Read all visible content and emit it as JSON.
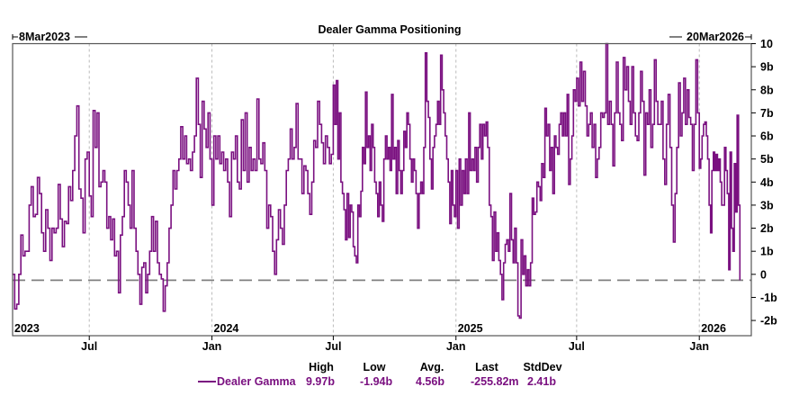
{
  "chart_data": {
    "type": "line",
    "title": "Dealer Gamma Positioning",
    "start_label": "8Mar2023",
    "end_label": "20Mar2026",
    "x_range": [
      "2023-03-08",
      "2026-03-20"
    ],
    "ylim": [
      -2.66,
      10
    ],
    "y_ticks": [
      {
        "v": 10,
        "label": "10"
      },
      {
        "v": 9,
        "label": "9b"
      },
      {
        "v": 8,
        "label": "8b"
      },
      {
        "v": 7,
        "label": "7b"
      },
      {
        "v": 6,
        "label": "6b"
      },
      {
        "v": 5,
        "label": "5b"
      },
      {
        "v": 4,
        "label": "4b"
      },
      {
        "v": 3,
        "label": "3b"
      },
      {
        "v": 2,
        "label": "2b"
      },
      {
        "v": 1,
        "label": "1b"
      },
      {
        "v": 0,
        "label": "0"
      },
      {
        "v": -1,
        "label": "-1b"
      },
      {
        "v": -2,
        "label": "-2b"
      }
    ],
    "x_ticks": [
      {
        "date": "2023-07-01",
        "label": "Jul"
      },
      {
        "date": "2024-01-01",
        "label": "Jan"
      },
      {
        "date": "2024-07-01",
        "label": "Jul"
      },
      {
        "date": "2025-01-01",
        "label": "Jan"
      },
      {
        "date": "2025-07-01",
        "label": "Jul"
      },
      {
        "date": "2026-01-01",
        "label": "Jan"
      }
    ],
    "year_labels": [
      {
        "date": "2023-03-08",
        "label": "2023"
      },
      {
        "date": "2024-01-01",
        "label": "2024"
      },
      {
        "date": "2025-01-01",
        "label": "2025"
      },
      {
        "date": "2026-01-01",
        "label": "2026"
      }
    ],
    "reference_line": -0.256,
    "grid": "vertical dashed",
    "series": [
      {
        "name": "Dealer Gamma",
        "color": "#7a1080",
        "unit": "billions",
        "segments": [
          {
            "from": "2023-03-08",
            "to": "2023-07-01",
            "values": [
              0,
              -1.5,
              -1.3,
              0,
              1.7,
              0.8,
              1.0,
              1.0,
              3.0,
              3.8,
              2.5,
              2.6,
              4.2,
              3.5,
              1.8,
              1.0,
              2.8,
              2.0,
              0.6,
              2.0,
              1.8,
              2.0,
              3.9,
              2.4,
              1.2,
              2.3,
              2.2,
              3.8,
              3.2,
              4.5,
              6.0,
              7.3,
              3.7,
              3.3,
              1.8,
              5.0,
              5.3
            ]
          },
          {
            "from": "2023-07-01",
            "to": "2024-01-01",
            "values": [
              3.4,
              2.5,
              7.1,
              5.5,
              7.0,
              3.8,
              4.0,
              4.5,
              4.0,
              2.0,
              2.5,
              1.5,
              2.4,
              0.8,
              1.0,
              -0.8,
              1.7,
              2.5,
              4.5,
              4.0,
              3.0,
              2.0,
              4.5,
              2.0,
              1.0,
              0.0,
              -1.3,
              0.3,
              0.5,
              -0.8,
              0.0,
              1.0,
              2.5,
              1.0,
              2.3,
              0.5,
              0.0,
              -0.2,
              -1.6,
              -0.5,
              0.5,
              2.0,
              3.0,
              4.5,
              3.7,
              4.5,
              5.0,
              6.4,
              5.0,
              6.0,
              4.8,
              5.0,
              4.5,
              5.3,
              6.0,
              8.5,
              6.5,
              4.2,
              7.5,
              6.3,
              5.5,
              7.0,
              5.0
            ]
          },
          {
            "from": "2024-01-01",
            "to": "2024-07-01",
            "values": [
              3.0,
              6.0,
              5.0,
              6.0,
              4.8,
              5.3,
              4.5,
              5.0,
              4.0,
              2.5,
              5.3,
              5.0,
              6.0,
              4.0,
              3.7,
              6.7,
              4.5,
              7.0,
              4.0,
              5.5,
              4.5,
              5.0,
              4.5,
              7.6,
              5.0,
              4.8,
              5.7,
              4.5,
              2.0,
              3.0,
              2.5,
              1.0,
              0.0,
              1.5,
              2.8,
              2.0,
              1.3,
              3.0,
              4.5,
              5.0,
              6.3,
              5.0,
              5.5,
              7.4,
              5.0,
              5.0,
              3.5,
              4.7,
              4.5,
              3.5,
              2.6,
              4.0,
              5.8,
              5.5,
              7.5,
              6.5,
              5.7,
              4.8,
              6.0,
              5.5,
              4.8,
              5.2
            ]
          },
          {
            "from": "2024-07-01",
            "to": "2025-01-01",
            "values": [
              8.2,
              6.5,
              8.4,
              5.0,
              7.0,
              4.0,
              3.5,
              2.8,
              1.5,
              3.5,
              1.6,
              3.0,
              2.7,
              1.2,
              0.8,
              0.5,
              3.0,
              2.5,
              3.6,
              5.5,
              4.8,
              7.9,
              5.5,
              6.0,
              4.5,
              6.5,
              5.5,
              4.0,
              3.5,
              2.5,
              4.0,
              3.0,
              2.3,
              5.0,
              6.0,
              5.0,
              5.5,
              4.5,
              7.8,
              5.0,
              5.5,
              3.5,
              5.8,
              4.5,
              3.5,
              4.5,
              6.2,
              5.5,
              7.0,
              6.5,
              5.0,
              4.0,
              5.0,
              4.5,
              3.5,
              2.0,
              3.5,
              4.0,
              3.5,
              5.5,
              9.6,
              7.5,
              6.8,
              5.0,
              3.7,
              5.5,
              6.0,
              6.5,
              7.5,
              6.5,
              9.5,
              8.0,
              7.0,
              6.0,
              5.0,
              4.0,
              2.2,
              4.5,
              3.0,
              2.5
            ]
          },
          {
            "from": "2025-01-01",
            "to": "2025-07-01",
            "values": [
              4.5,
              2.0,
              5.0,
              3.0,
              4.5,
              3.5,
              5.0,
              3.5,
              7.0,
              4.5,
              5.0,
              4.5,
              5.5,
              4.0,
              5.5,
              6.5,
              5.0,
              6.5,
              6.0,
              6.6,
              5.5,
              3.0,
              2.5,
              0.6,
              2.7,
              1.0,
              1.8,
              0.6,
              0.0,
              -1.1,
              0.5,
              1.3,
              1.5,
              1.0,
              3.5,
              1.5,
              0.5,
              2.0,
              0.5,
              -1.8,
              -1.9,
              1.5,
              0.0,
              0.8,
              -0.5,
              0.2,
              -0.5,
              0.5,
              3.3,
              2.6,
              2.7,
              4.0,
              3.8,
              3.2,
              4.8,
              4.2,
              7.2,
              6.0,
              6.5,
              4.5,
              5.5,
              3.5,
              6.0,
              5.5,
              5.2,
              6.5,
              7.0,
              6.0,
              7.0,
              6.0,
              7.8,
              3.9,
              5.0,
              6.0,
              8.0,
              7.5
            ]
          },
          {
            "from": "2025-07-01",
            "to": "2026-01-01",
            "values": [
              8.5,
              7.3,
              9.2,
              7.5,
              8.8,
              7.3,
              6.0,
              6.5,
              7.0,
              5.5,
              6.5,
              4.2,
              5.0,
              5.5,
              7.0,
              6.8,
              7.0,
              10.0,
              6.5,
              7.5,
              6.5,
              4.7,
              7.0,
              9.2,
              7.0,
              6.5,
              5.8,
              9.4,
              8.0,
              9.0,
              7.5,
              6.5,
              9.0,
              7.0,
              6.0,
              5.8,
              7.0,
              8.8,
              7.5,
              4.3,
              7.0,
              6.5,
              8.0,
              5.5,
              6.5,
              9.3,
              7.5,
              6.5,
              6.5,
              7.5,
              5.0,
              3.9,
              6.5,
              7.8,
              5.5,
              3.0,
              1.4,
              3.5,
              5.5,
              8.3,
              6.0,
              7.0,
              8.5,
              6.5,
              8.0,
              6.8,
              6.5,
              4.5,
              6.5,
              9.3,
              7.0
            ]
          },
          {
            "from": "2026-01-01",
            "to": "2026-03-05",
            "values": [
              4.6,
              5.0,
              6.0,
              6.5,
              6.6,
              6.0,
              5.0,
              3.0,
              1.8,
              4.5,
              5.3,
              4.5,
              5.2,
              4.5,
              5.0,
              4.0,
              3.0,
              3.0,
              5.5,
              4.5,
              3.5,
              0.2,
              5.3,
              2.0,
              1.0,
              4.8,
              2.7,
              6.9,
              3.0,
              -0.256
            ]
          }
        ]
      }
    ],
    "legend": {
      "placement": "bottom",
      "headers": [
        "High",
        "Low",
        "Avg.",
        "Last",
        "StdDev"
      ],
      "name": "Dealer Gamma",
      "stats": [
        "9.97b",
        "-1.94b",
        "4.56b",
        "-255.82m",
        "2.41b"
      ]
    }
  }
}
